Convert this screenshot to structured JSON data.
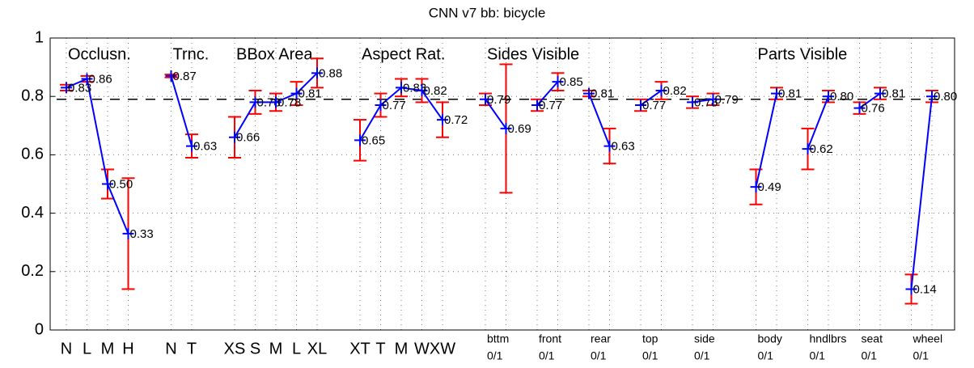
{
  "chart_data": {
    "type": "errorbar-line",
    "title": "CNN v7 bb: bicycle",
    "ylim": [
      0,
      1
    ],
    "yticks": [
      0,
      0.2,
      0.4,
      0.6,
      0.8,
      1
    ],
    "grid": true,
    "reference_line": 0.79,
    "line_color": "#0000ff",
    "error_color": "#ff0000",
    "groups": [
      {
        "name": "Occlusn.",
        "segments": [
          {
            "categories": [
              "N",
              "L",
              "M",
              "H"
            ],
            "values": [
              0.83,
              0.86,
              0.5,
              0.33
            ],
            "errors": [
              0.01,
              0.01,
              0.05,
              0.19
            ],
            "value_labels": [
              "0.83",
              "0.86",
              "0.50",
              "0.33"
            ]
          }
        ]
      },
      {
        "name": "Trnc.",
        "segments": [
          {
            "categories": [
              "N",
              "T"
            ],
            "values": [
              0.87,
              0.63
            ],
            "errors": [
              0.005,
              0.04
            ],
            "value_labels": [
              "0.87",
              "0.63"
            ]
          }
        ]
      },
      {
        "name": "BBox Area",
        "segments": [
          {
            "categories": [
              "XS",
              "S",
              "M",
              "L",
              "XL"
            ],
            "values": [
              0.66,
              0.78,
              0.78,
              0.81,
              0.88
            ],
            "errors": [
              0.07,
              0.04,
              0.03,
              0.04,
              0.05
            ],
            "value_labels": [
              "0.66",
              "0.78",
              "0.78",
              "0.81",
              "0.88"
            ]
          }
        ]
      },
      {
        "name": "Aspect Rat.",
        "segments": [
          {
            "categories": [
              "XT",
              "T",
              "M",
              "W",
              "XW"
            ],
            "values": [
              0.65,
              0.77,
              0.83,
              0.82,
              0.72
            ],
            "errors": [
              0.07,
              0.04,
              0.03,
              0.04,
              0.06
            ],
            "value_labels": [
              "0.65",
              "0.77",
              "0.83",
              "0.82",
              "0.72"
            ]
          }
        ]
      },
      {
        "name": "Sides Visible",
        "segments": [
          {
            "name": "bttm",
            "label": "0/1",
            "values": [
              0.79,
              0.69
            ],
            "errors": [
              0.02,
              0.22
            ],
            "value_labels": [
              "0.79",
              "0.69"
            ]
          },
          {
            "name": "front",
            "label": "0/1",
            "values": [
              0.77,
              0.85
            ],
            "errors": [
              0.02,
              0.03
            ],
            "value_labels": [
              "0.77",
              "0.85"
            ]
          },
          {
            "name": "rear",
            "label": "0/1",
            "values": [
              0.81,
              0.63
            ],
            "errors": [
              0.01,
              0.06
            ],
            "value_labels": [
              "0.81",
              "0.63"
            ]
          },
          {
            "name": "top",
            "label": "0/1",
            "values": [
              0.77,
              0.82
            ],
            "errors": [
              0.02,
              0.03
            ],
            "value_labels": [
              "0.77",
              "0.82"
            ]
          },
          {
            "name": "side",
            "label": "0/1",
            "values": [
              0.78,
              0.79
            ],
            "errors": [
              0.02,
              0.02
            ],
            "value_labels": [
              "0.78",
              "0.79"
            ]
          }
        ]
      },
      {
        "name": "Parts Visible",
        "segments": [
          {
            "name": "body",
            "label": "0/1",
            "values": [
              0.49,
              0.81
            ],
            "errors": [
              0.06,
              0.02
            ],
            "value_labels": [
              "0.49",
              "0.81"
            ]
          },
          {
            "name": "hndlbrs",
            "label": "0/1",
            "values": [
              0.62,
              0.8
            ],
            "errors": [
              0.07,
              0.02
            ],
            "value_labels": [
              "0.62",
              "0.80"
            ]
          },
          {
            "name": "seat",
            "label": "0/1",
            "values": [
              0.76,
              0.81
            ],
            "errors": [
              0.02,
              0.02
            ],
            "value_labels": [
              "0.76",
              "0.81"
            ]
          },
          {
            "name": "wheel",
            "label": "0/1",
            "values": [
              0.14,
              0.8
            ],
            "errors": [
              0.05,
              0.02
            ],
            "value_labels": [
              "0.14",
              "0.80"
            ]
          }
        ]
      }
    ]
  }
}
